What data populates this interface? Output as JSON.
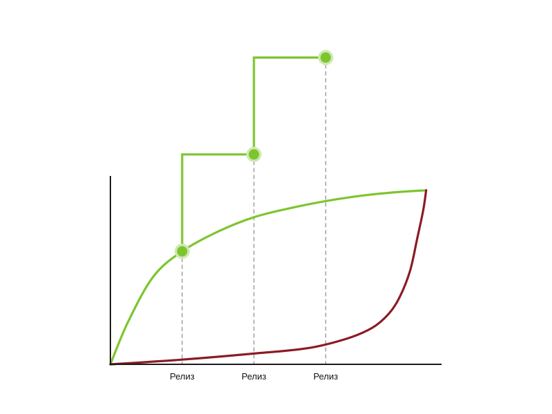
{
  "chart_data": {
    "type": "line",
    "title": "",
    "xlabel": "",
    "ylabel": "",
    "xlim": [
      0,
      9
    ],
    "ylim": [
      0,
      9
    ],
    "colors": {
      "axis": "#1a1a1a",
      "green": "#7dc52f",
      "red": "#8a1c24",
      "marker_fill": "#7dc52f",
      "marker_halo": "#cfe9b0",
      "guide": "#a6a6a6"
    },
    "releases": [
      {
        "label": "Релиз",
        "x": 2,
        "y_start": 3.15,
        "y_end": 5.85
      },
      {
        "label": "Релиз",
        "x": 4,
        "y_start": 5.85,
        "y_end": 8.55
      },
      {
        "label": "Релиз",
        "x": 6,
        "y_start": 8.55,
        "y_end": null
      }
    ],
    "series": [
      {
        "name": "green-baseline",
        "points": [
          [
            0,
            0
          ],
          [
            0.5,
            1.2
          ],
          [
            1.2,
            2.45
          ],
          [
            2,
            3.15
          ],
          [
            3,
            3.7
          ],
          [
            4,
            4.1
          ],
          [
            5,
            4.35
          ],
          [
            6,
            4.55
          ],
          [
            7,
            4.7
          ],
          [
            8,
            4.8
          ],
          [
            8.8,
            4.85
          ]
        ]
      },
      {
        "name": "red-curve",
        "points": [
          [
            0,
            0
          ],
          [
            2,
            0.13
          ],
          [
            4,
            0.3
          ],
          [
            5.5,
            0.45
          ],
          [
            6.6,
            0.72
          ],
          [
            7.3,
            1.02
          ],
          [
            7.75,
            1.4
          ],
          [
            8.05,
            1.85
          ],
          [
            8.35,
            2.6
          ],
          [
            8.55,
            3.5
          ],
          [
            8.72,
            4.3
          ],
          [
            8.8,
            4.85
          ]
        ]
      }
    ]
  }
}
